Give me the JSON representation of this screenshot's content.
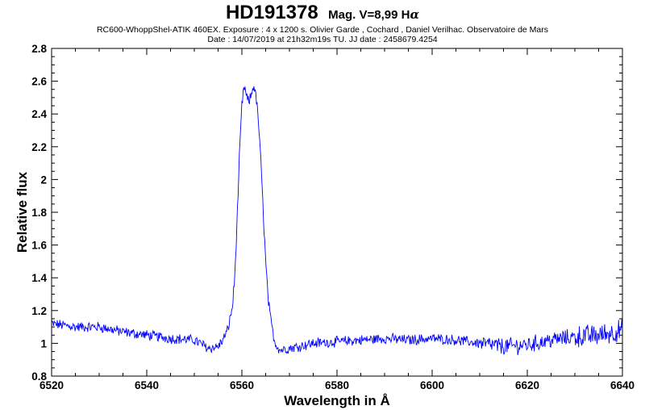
{
  "header": {
    "star_name": "HD191378",
    "magnitude": "Mag. V=8,99",
    "line_prefix": "H",
    "line_greek": "α",
    "instrument_line": "RC600-WhoppShel-ATIK 460EX. Exposure : 4 x 1200 s. Olivier Garde , Cochard , Daniel Verilhac. Observatoire de Mars",
    "date_line": "Date : 14/07/2019 at 21h32m19s TU. JJ date : 2458679.4254"
  },
  "chart_data": {
    "type": "line",
    "xlabel": "Wavelength in Å",
    "ylabel": "Relative flux",
    "xlim": [
      6520,
      6640
    ],
    "ylim": [
      0.8,
      2.8
    ],
    "xticks": [
      "6520",
      "6540",
      "6560",
      "6580",
      "6600",
      "6620",
      "6640"
    ],
    "yticks": [
      "0.8",
      "1",
      "1.2",
      "1.4",
      "1.6",
      "1.8",
      "2",
      "2.2",
      "2.4",
      "2.6",
      "2.8"
    ],
    "grid": false,
    "line_color": "#0000ff",
    "series": [
      {
        "x": [
          6520,
          6525,
          6530,
          6535,
          6540,
          6545,
          6550,
          6553,
          6555,
          6556,
          6557,
          6558,
          6558.5,
          6559,
          6559.5,
          6560,
          6560.5,
          6561,
          6561.5,
          6562,
          6562.5,
          6563,
          6563.5,
          6564,
          6564.5,
          6565,
          6565.5,
          6566,
          6566.5,
          6567,
          6568,
          6570,
          6575,
          6580,
          6585,
          6590,
          6595,
          6600,
          6605,
          6610,
          6615,
          6620,
          6625,
          6630,
          6635,
          6640
        ],
        "y": [
          1.12,
          1.1,
          1.1,
          1.07,
          1.05,
          1.03,
          1.02,
          0.97,
          0.98,
          1.02,
          1.08,
          1.22,
          1.4,
          1.75,
          2.15,
          2.45,
          2.57,
          2.5,
          2.47,
          2.52,
          2.58,
          2.5,
          2.35,
          2.1,
          1.8,
          1.5,
          1.28,
          1.15,
          1.07,
          1.0,
          0.96,
          0.97,
          1.0,
          1.01,
          1.02,
          1.03,
          1.02,
          1.03,
          1.02,
          1.0,
          0.98,
          0.99,
          1.02,
          1.04,
          1.05,
          1.08
        ]
      }
    ]
  }
}
